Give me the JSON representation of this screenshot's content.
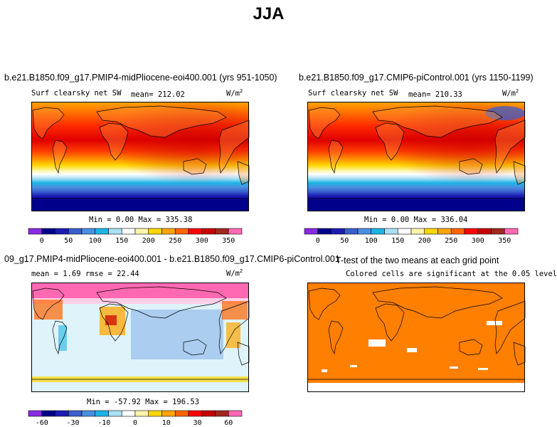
{
  "title": "JJA",
  "panels": [
    {
      "case": "b.e21.B1850.f09_g17.PMIP4-midPliocene-eoi400.001 (yrs 951-1050)",
      "variable": "Surf clearsky net SW",
      "mean_label": "mean= 212.02",
      "units": "W/m",
      "units_sup": "2",
      "minmax": "Min =   0.00 Max = 335.38"
    },
    {
      "case": "b.e21.B1850.f09_g17.CMIP6-piControl.001 (yrs 1150-1199)",
      "variable": "Surf clearsky net SW",
      "mean_label": "mean= 210.33",
      "units": "W/m",
      "units_sup": "2",
      "minmax": "Min =   0.00 Max = 336.04"
    },
    {
      "case": "09_g17.PMIP4-midPliocene-eoi400.001 - b.e21.B1850.f09_g17.CMIP6-piControl.001",
      "stats_label": "mean =   1.69    rmse =  22.44",
      "units": "W/m",
      "units_sup": "2",
      "minmax": "Min = -57.92 Max = 196.53"
    },
    {
      "case": "T-test of the two means at each grid point",
      "note": "Colored cells are significant at the 0.05 level"
    }
  ],
  "colorbar_abs": {
    "labels": [
      "0",
      "50",
      "100",
      "150",
      "200",
      "250",
      "300",
      "350"
    ],
    "colors": [
      "#8a2be2",
      "#00008b",
      "#1c1cb4",
      "#3a5fcd",
      "#4a90e2",
      "#1eb4e6",
      "#aae1f5",
      "#ffffff",
      "#fff5aa",
      "#ffd700",
      "#ffa500",
      "#ff6400",
      "#ff0000",
      "#c80000",
      "#a0281e",
      "#ff69b4"
    ]
  },
  "colorbar_diff": {
    "labels": [
      "-60",
      "-30",
      "-10",
      "0",
      "10",
      "30",
      "60"
    ],
    "colors": [
      "#8a2be2",
      "#00008b",
      "#1c1cb4",
      "#3a5fcd",
      "#4a90e2",
      "#1eb4e6",
      "#aae1f5",
      "#ffffff",
      "#fff5aa",
      "#ffd700",
      "#ffa500",
      "#ff6400",
      "#ff0000",
      "#c80000",
      "#a0281e",
      "#ff69b4"
    ]
  },
  "chart_data": [
    {
      "type": "heatmap",
      "title": "b.e21.B1850.f09_g17.PMIP4-midPliocene-eoi400.001 (yrs 951-1050)",
      "variable": "Surf clearsky net SW",
      "units": "W/m2",
      "mean": 212.02,
      "min": 0.0,
      "max": 335.38,
      "colorbar_levels": [
        0,
        50,
        100,
        150,
        200,
        250,
        300,
        350
      ]
    },
    {
      "type": "heatmap",
      "title": "b.e21.B1850.f09_g17.CMIP6-piControl.001 (yrs 1150-1199)",
      "variable": "Surf clearsky net SW",
      "units": "W/m2",
      "mean": 210.33,
      "min": 0.0,
      "max": 336.04,
      "colorbar_levels": [
        0,
        50,
        100,
        150,
        200,
        250,
        300,
        350
      ]
    },
    {
      "type": "heatmap",
      "title": "09_g17.PMIP4-midPliocene-eoi400.001 - b.e21.B1850.f09_g17.CMIP6-piControl.001",
      "units": "W/m2",
      "mean": 1.69,
      "rmse": 22.44,
      "min": -57.92,
      "max": 196.53,
      "colorbar_levels": [
        -60,
        -30,
        -10,
        0,
        10,
        30,
        60
      ]
    },
    {
      "type": "heatmap",
      "title": "T-test of the two means at each grid point",
      "note": "Colored cells are significant at the 0.05 level",
      "significance_level": 0.05
    }
  ]
}
